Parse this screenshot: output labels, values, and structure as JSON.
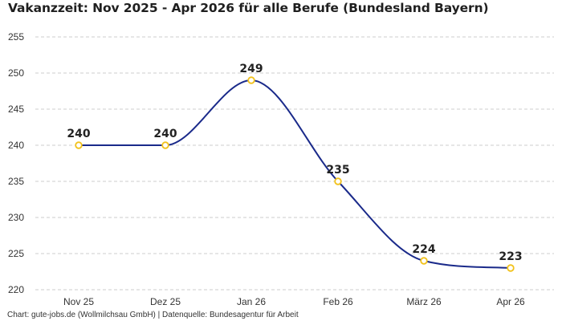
{
  "title": "Vakanzzeit: Nov 2025 - Apr 2026 für alle Berufe (Bundesland Bayern)",
  "footer": "Chart: gute-jobs.de (Wollmilchsau GmbH) | Datenquelle: Bundesagentur für Arbeit",
  "colors": {
    "line": "#1a2a8a",
    "marker_stroke": "#f2c21b",
    "marker_fill": "#ffffff",
    "grid": "#cccccc"
  },
  "chart_data": {
    "type": "line",
    "title": "Vakanzzeit: Nov 2025 - Apr 2026 für alle Berufe (Bundesland Bayern)",
    "xlabel": "",
    "ylabel": "",
    "categories": [
      "Nov 25",
      "Dez 25",
      "Jan 26",
      "Feb 26",
      "März 26",
      "Apr 26"
    ],
    "series": [
      {
        "values": [
          240,
          240,
          249,
          235,
          224,
          223
        ]
      }
    ],
    "data_labels": [
      "240",
      "240",
      "249",
      "235",
      "224",
      "223"
    ],
    "ylim": [
      220,
      255
    ],
    "yticks": [
      220,
      225,
      230,
      235,
      240,
      245,
      250,
      255
    ],
    "grid": true,
    "grid_style": "dashed-horizontal",
    "smooth": true,
    "legend": "none"
  }
}
